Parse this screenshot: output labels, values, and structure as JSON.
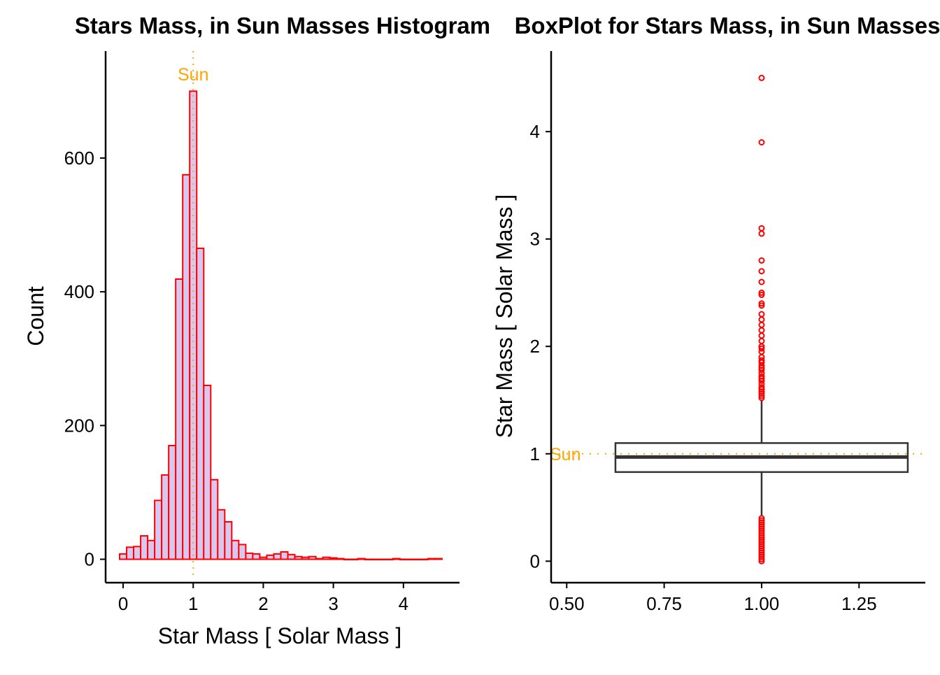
{
  "colors": {
    "bar_fill": "#D8C8F0",
    "bar_outline": "#FF0000",
    "sun_line": "#FFA500",
    "outlier": "#FF0000",
    "box_line": "#333333",
    "axis": "#000000"
  },
  "chart_data": [
    {
      "type": "bar",
      "subtype": "histogram",
      "title": "Stars Mass, in Sun Masses Histogram",
      "xlabel": "Star  Mass  [ Solar Mass ]",
      "ylabel": "Count",
      "xlim": [
        -0.25,
        4.8
      ],
      "ylim": [
        -35,
        760
      ],
      "xticks": [
        0,
        1,
        2,
        3,
        4
      ],
      "yticks": [
        0,
        200,
        400,
        600
      ],
      "grid": false,
      "bin_width": 0.1,
      "bin_centers": [
        0.0,
        0.1,
        0.2,
        0.3,
        0.4,
        0.5,
        0.6,
        0.7,
        0.8,
        0.9,
        1.0,
        1.1,
        1.2,
        1.3,
        1.4,
        1.5,
        1.6,
        1.7,
        1.8,
        1.9,
        2.0,
        2.1,
        2.2,
        2.3,
        2.4,
        2.5,
        2.6,
        2.7,
        2.8,
        2.9,
        3.0,
        3.1,
        3.2,
        3.3,
        3.4,
        3.5,
        3.6,
        3.7,
        3.8,
        3.9,
        4.0,
        4.1,
        4.2,
        4.3,
        4.4,
        4.5
      ],
      "counts": [
        8,
        18,
        19,
        35,
        28,
        88,
        126,
        170,
        419,
        575,
        700,
        465,
        260,
        119,
        74,
        56,
        28,
        22,
        9,
        8,
        3,
        6,
        8,
        11,
        7,
        4,
        3,
        4,
        1,
        3,
        2,
        1,
        0,
        0,
        1,
        0,
        0,
        0,
        0,
        1,
        0,
        0,
        0,
        0,
        1,
        1
      ],
      "annotations": [
        {
          "text": "Sun",
          "x": 1.0
        }
      ]
    },
    {
      "type": "box",
      "title": "BoxPlot for Stars Mass, in Sun Masses",
      "xlabel": "",
      "ylabel": "Star  Mass  [ Solar Mass ]",
      "xlim": [
        0.46,
        1.42
      ],
      "ylim": [
        -0.2,
        4.75
      ],
      "xticks": [
        0.5,
        0.75,
        1.0,
        1.25
      ],
      "xtick_labels": [
        "0.50",
        "0.75",
        "1.00",
        "1.25"
      ],
      "yticks": [
        0,
        1,
        2,
        3,
        4
      ],
      "grid": false,
      "box": {
        "x": 1.0,
        "half_width": 0.375,
        "q1": 0.83,
        "median": 0.97,
        "q3": 1.1,
        "whisker_low": 0.42,
        "whisker_high": 1.5
      },
      "outliers_high": [
        4.5,
        3.9,
        3.1,
        3.05,
        2.8,
        2.7,
        2.6,
        2.5,
        2.48,
        2.4,
        2.38,
        2.3,
        2.25,
        2.2,
        2.15,
        2.1,
        2.05,
        2.0,
        1.98,
        1.95,
        1.9,
        1.87,
        1.85,
        1.82,
        1.8,
        1.78,
        1.75,
        1.72,
        1.7,
        1.68,
        1.65,
        1.62,
        1.6,
        1.58,
        1.56,
        1.54,
        1.52
      ],
      "outliers_low": [
        0.4,
        0.38,
        0.36,
        0.34,
        0.32,
        0.3,
        0.28,
        0.26,
        0.24,
        0.22,
        0.2,
        0.18,
        0.16,
        0.14,
        0.12,
        0.1,
        0.08,
        0.06,
        0.04,
        0.02,
        0.0
      ],
      "annotations": [
        {
          "text": "Sun",
          "y": 1.0
        }
      ]
    }
  ]
}
